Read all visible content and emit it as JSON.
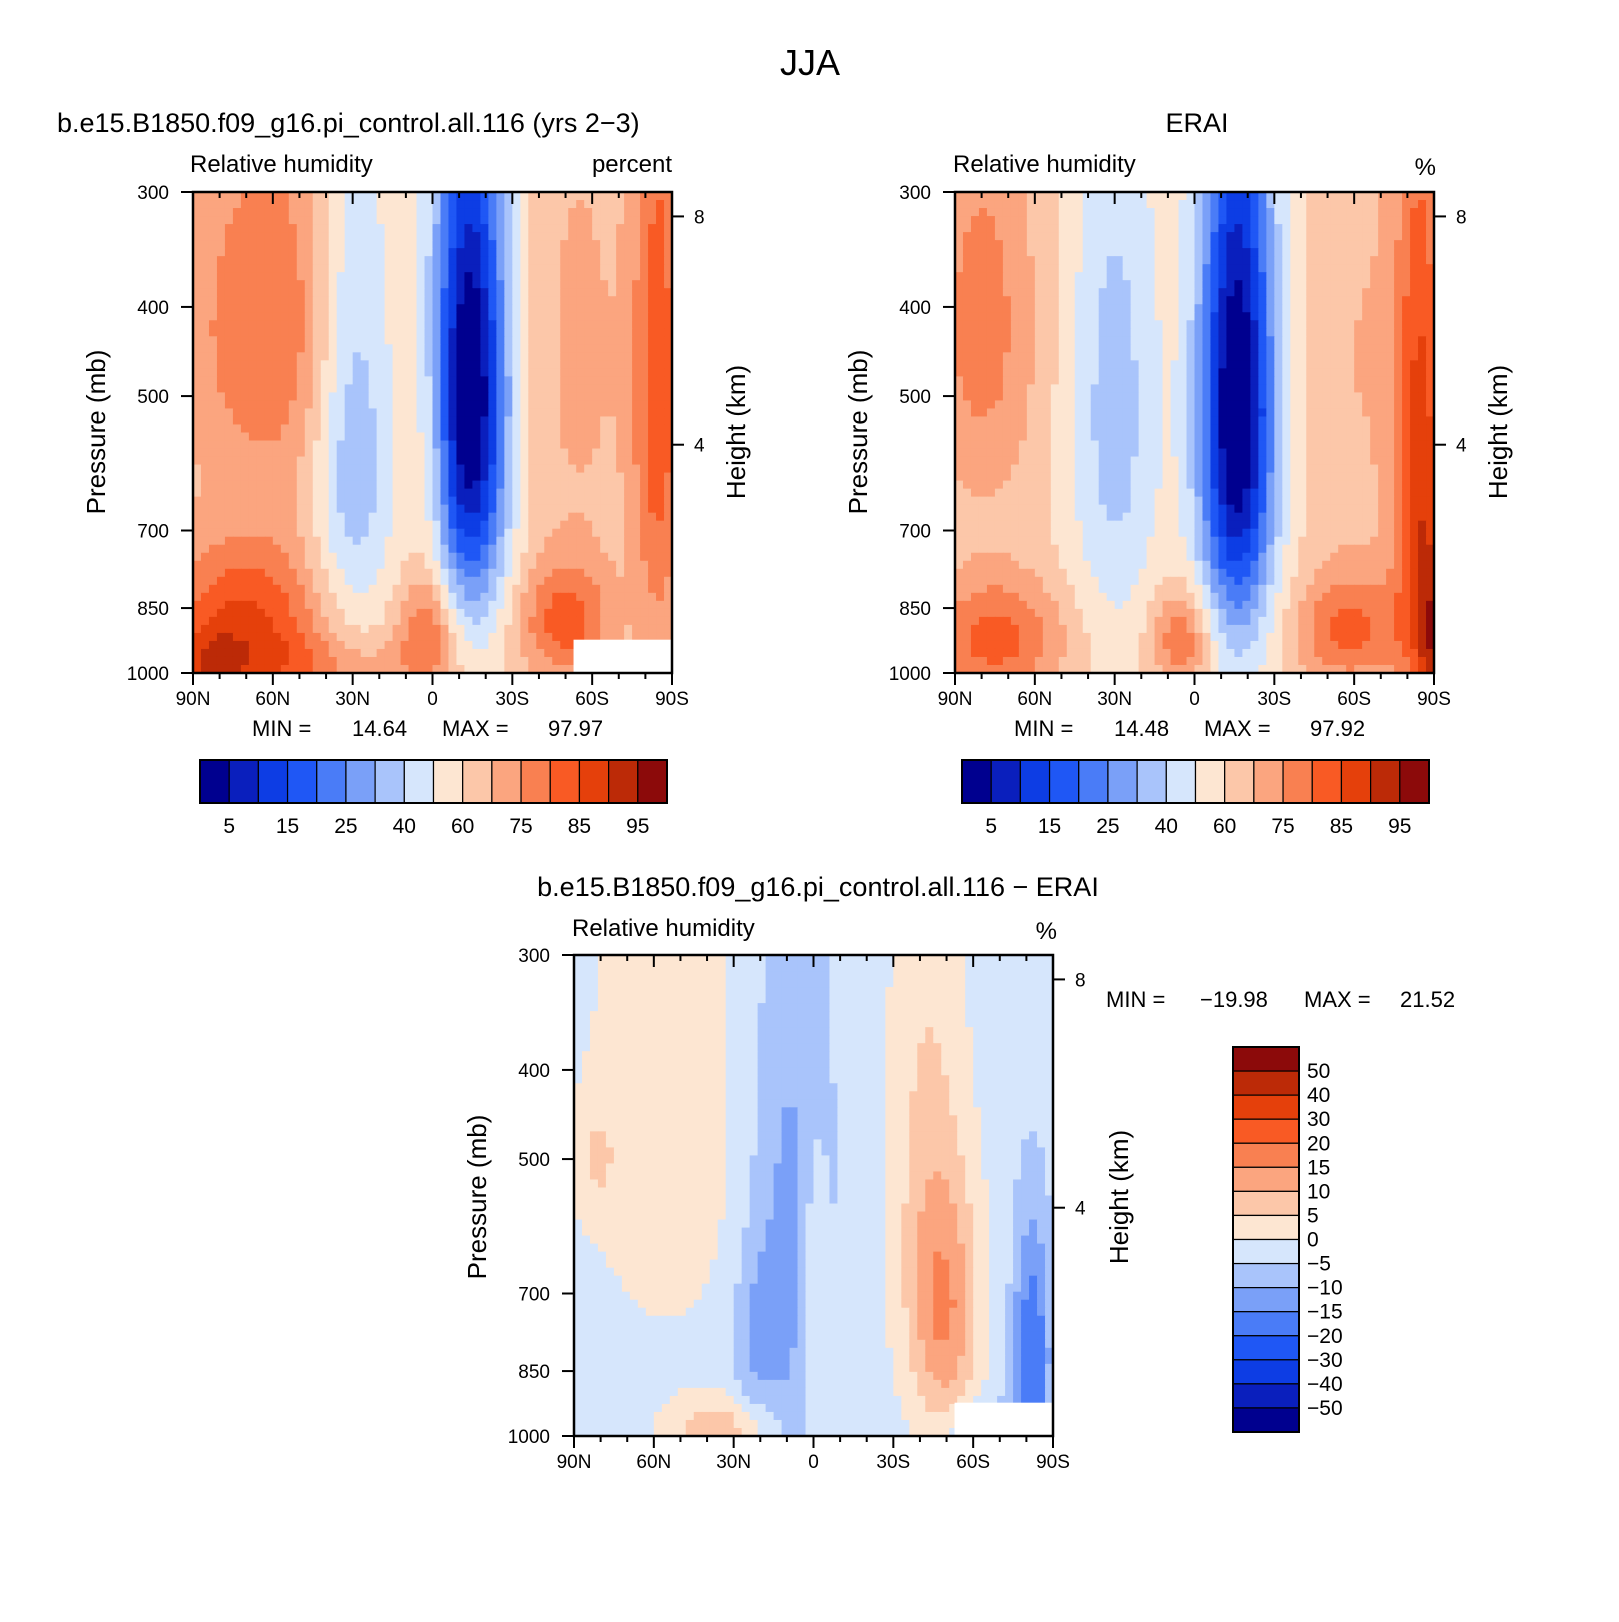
{
  "figure_title": "JJA",
  "chart_data": [
    {
      "type": "heatmap",
      "case_title": "b.e15.B1850.f09_g16.pi_control.all.116 (yrs 2−3)",
      "variable_label": "Relative humidity",
      "units_label": "percent",
      "xticks": [
        "90N",
        "60N",
        "30N",
        "0",
        "30S",
        "60S",
        "90S"
      ],
      "y_left_label": "Pressure (mb)",
      "y_left_ticks": [
        "300",
        "400",
        "500",
        "700",
        "850",
        "1000"
      ],
      "y_right_label": "Height (km)",
      "y_right_ticks": [
        "8",
        "4"
      ],
      "min_label": "MIN =",
      "min_value": "14.64",
      "max_label": "MAX =",
      "max_value": "97.97",
      "colorbar_labels": [
        "5",
        "15",
        "25",
        "40",
        "60",
        "75",
        "85",
        "95"
      ]
    },
    {
      "type": "heatmap",
      "case_title": "ERAI",
      "variable_label": "Relative humidity",
      "units_label": "%",
      "xticks": [
        "90N",
        "60N",
        "30N",
        "0",
        "30S",
        "60S",
        "90S"
      ],
      "y_left_label": "Pressure (mb)",
      "y_left_ticks": [
        "300",
        "400",
        "500",
        "700",
        "850",
        "1000"
      ],
      "y_right_label": "Height (km)",
      "y_right_ticks": [
        "8",
        "4"
      ],
      "min_label": "MIN =",
      "min_value": "14.48",
      "max_label": "MAX =",
      "max_value": "97.92",
      "colorbar_labels": [
        "5",
        "15",
        "25",
        "40",
        "60",
        "75",
        "85",
        "95"
      ]
    },
    {
      "type": "heatmap",
      "case_title": "b.e15.B1850.f09_g16.pi_control.all.116 − ERAI",
      "variable_label": "Relative humidity",
      "units_label": "%",
      "xticks": [
        "90N",
        "60N",
        "30N",
        "0",
        "30S",
        "60S",
        "90S"
      ],
      "y_left_label": "Pressure (mb)",
      "y_left_ticks": [
        "300",
        "400",
        "500",
        "700",
        "850",
        "1000"
      ],
      "y_right_label": "Height (km)",
      "y_right_ticks": [
        "8",
        "4"
      ],
      "min_label": "MIN =",
      "min_value": "−19.98",
      "max_label": "MAX =",
      "max_value": "21.52",
      "colorbar_labels": [
        "50",
        "40",
        "30",
        "20",
        "15",
        "10",
        "5",
        "0",
        "−5",
        "−10",
        "−15",
        "−20",
        "−30",
        "−40",
        "−50"
      ]
    }
  ],
  "colors": {
    "palette16": [
      "#00008f",
      "#0a1fbd",
      "#0d3de4",
      "#1f57f5",
      "#4a7cf7",
      "#7aa0f8",
      "#a9c4fb",
      "#d6e6fc",
      "#fde6d2",
      "#fcc7a9",
      "#fba57f",
      "#f98051",
      "#f95a24",
      "#e5400b",
      "#bc2a07",
      "#8c0a0a"
    ]
  },
  "panel_fields": [
    {
      "base": 9,
      "masked_lower_right": true,
      "blobs": [
        {
          "lat": 70,
          "p": 870,
          "sx": 22,
          "sy": 120,
          "a": 4.0
        },
        {
          "lat": 60,
          "p": 420,
          "sx": 25,
          "sy": 150,
          "a": 3.0
        },
        {
          "lat": 85,
          "p": 1000,
          "sx": 10,
          "sy": 80,
          "a": 2.0
        },
        {
          "lat": 30,
          "p": 520,
          "sx": 11,
          "sy": 250,
          "a": -3.5
        },
        {
          "lat": 2,
          "p": 900,
          "sx": 8,
          "sy": 90,
          "a": 3.0
        },
        {
          "lat": 0,
          "p": 600,
          "sx": 5,
          "sy": 140,
          "a": 1.2
        },
        {
          "lat": -14,
          "p": 500,
          "sx": 10,
          "sy": 230,
          "a": -9.5
        },
        {
          "lat": -50,
          "p": 880,
          "sx": 12,
          "sy": 90,
          "a": 3.5
        },
        {
          "lat": -55,
          "p": 450,
          "sx": 16,
          "sy": 240,
          "a": 1.2
        },
        {
          "lat": -85,
          "p": 500,
          "sx": 7,
          "sy": 300,
          "a": 3.5
        },
        {
          "lat": 50,
          "p": 990,
          "sx": 35,
          "sy": 60,
          "a": 2.0
        }
      ]
    },
    {
      "base": 9,
      "masked_lower_right": false,
      "blobs": [
        {
          "lat": 80,
          "p": 420,
          "sx": 15,
          "sy": 160,
          "a": 2.5
        },
        {
          "lat": 75,
          "p": 920,
          "sx": 18,
          "sy": 100,
          "a": 3.5
        },
        {
          "lat": 30,
          "p": 520,
          "sx": 12,
          "sy": 260,
          "a": -2.5
        },
        {
          "lat": 5,
          "p": 920,
          "sx": 8,
          "sy": 80,
          "a": 3.0
        },
        {
          "lat": -16,
          "p": 520,
          "sx": 10,
          "sy": 250,
          "a": -9.5
        },
        {
          "lat": -58,
          "p": 900,
          "sx": 14,
          "sy": 90,
          "a": 3.2
        },
        {
          "lat": -85,
          "p": 650,
          "sx": 7,
          "sy": 350,
          "a": 4.5
        },
        {
          "lat": -89,
          "p": 950,
          "sx": 3,
          "sy": 150,
          "a": 3.0
        },
        {
          "lat": -62,
          "p": 450,
          "sx": 15,
          "sy": 250,
          "a": 1.0
        }
      ]
    },
    {
      "base": 7.5,
      "masked_lower_right": true,
      "blobs": [
        {
          "lat": 8,
          "p": 620,
          "sx": 11,
          "sy": 320,
          "a": -2.0
        },
        {
          "lat": 22,
          "p": 780,
          "sx": 6,
          "sy": 130,
          "a": -1.2
        },
        {
          "lat": -50,
          "p": 740,
          "sx": 9,
          "sy": 170,
          "a": 3.0
        },
        {
          "lat": -42,
          "p": 500,
          "sx": 10,
          "sy": 280,
          "a": 1.5
        },
        {
          "lat": 0,
          "p": 700,
          "sx": 4,
          "sy": 180,
          "a": 1.6
        },
        {
          "lat": 55,
          "p": 450,
          "sx": 22,
          "sy": 220,
          "a": 1.2
        },
        {
          "lat": 82,
          "p": 500,
          "sx": 6,
          "sy": 50,
          "a": 1.2
        },
        {
          "lat": 35,
          "p": 990,
          "sx": 14,
          "sy": 60,
          "a": 2.2
        },
        {
          "lat": -82,
          "p": 820,
          "sx": 5,
          "sy": 180,
          "a": -3.5
        },
        {
          "lat": -65,
          "p": 1000,
          "sx": 12,
          "sy": 60,
          "a": -1.5
        }
      ]
    }
  ]
}
